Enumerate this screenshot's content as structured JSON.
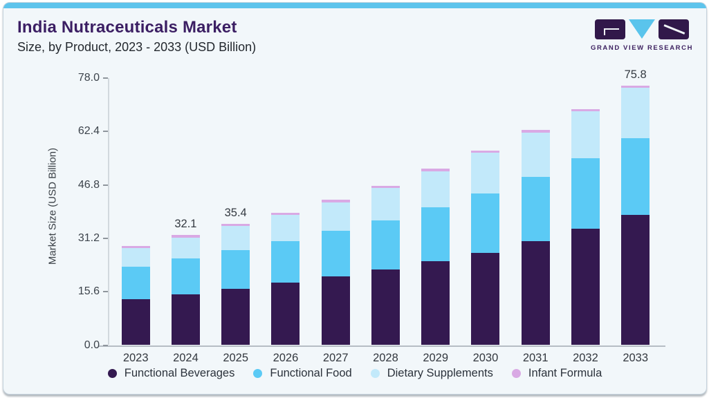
{
  "header": {
    "title": "India Nutraceuticals Market",
    "subtitle": "Size, by Product, 2023 - 2033 (USD Billion)",
    "logo": {
      "wordmark": "GRAND VIEW RESEARCH",
      "purple": "#31184a",
      "cyan": "#5ac4ec"
    }
  },
  "theme": {
    "accent_bar": "#5ec4ec",
    "card_bg": "#f2f7fa",
    "card_border": "#c6d3dd",
    "title_color": "#3b1e63",
    "subtitle_color": "#23282e",
    "axis_text": "#3c434b",
    "axis_line": "#b6bdc4"
  },
  "chart_data": {
    "type": "bar",
    "stacked": true,
    "title": "India Nutraceuticals Market",
    "subtitle": "Size, by Product, 2023 - 2033 (USD Billion)",
    "xlabel": "",
    "ylabel": "Market Size (USD Billion)",
    "categories": [
      "2023",
      "2024",
      "2025",
      "2026",
      "2027",
      "2028",
      "2029",
      "2030",
      "2031",
      "2032",
      "2033"
    ],
    "series": [
      {
        "name": "Functional Beverages",
        "color": "#341950",
        "values": [
          13.5,
          14.8,
          16.4,
          18.2,
          20.0,
          22.1,
          24.5,
          26.9,
          30.3,
          34.0,
          38.1
        ]
      },
      {
        "name": "Functional Food",
        "color": "#5bcaf5",
        "values": [
          9.4,
          10.6,
          11.4,
          12.2,
          13.3,
          14.4,
          15.7,
          17.3,
          18.8,
          20.5,
          22.3
        ]
      },
      {
        "name": "Dietary Supplements",
        "color": "#c2e9fa",
        "values": [
          5.5,
          6.0,
          6.9,
          7.6,
          8.4,
          9.4,
          10.6,
          12.0,
          13.0,
          13.8,
          14.7
        ]
      },
      {
        "name": "Infant Formula",
        "color": "#d9a9e4",
        "values": [
          0.5,
          0.7,
          0.7,
          0.7,
          0.7,
          0.7,
          0.7,
          0.6,
          0.7,
          0.6,
          0.7
        ]
      }
    ],
    "totals": [
      28.9,
      32.1,
      35.4,
      38.7,
      42.4,
      46.6,
      51.5,
      56.8,
      62.8,
      68.9,
      75.8
    ],
    "value_labels": {
      "2024": "32.1",
      "2025": "35.4",
      "2033": "75.8"
    },
    "yticks": [
      0.0,
      15.6,
      31.2,
      46.8,
      62.4,
      78.0
    ],
    "ylim": [
      0,
      78
    ],
    "grid": false,
    "legend_position": "bottom"
  }
}
